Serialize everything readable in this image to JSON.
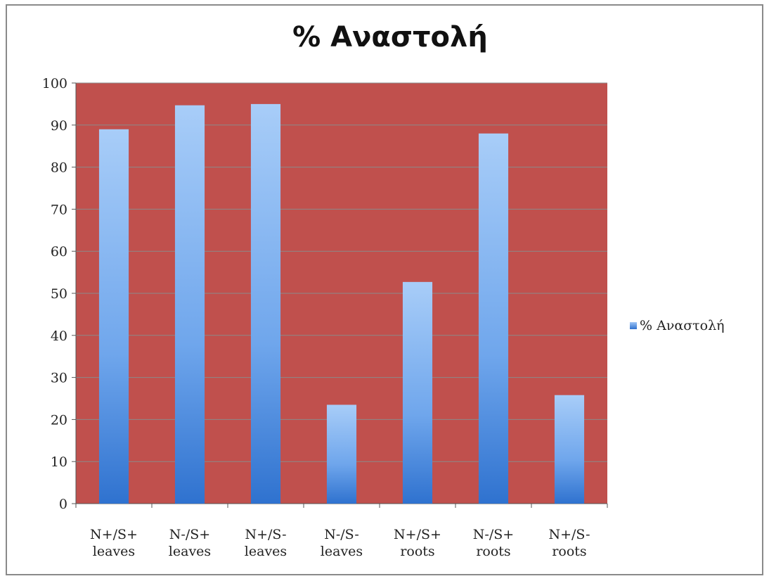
{
  "chart_data": {
    "type": "bar",
    "title": "% Αναστολή",
    "categories": [
      [
        "N+/S+",
        "leaves"
      ],
      [
        "N-/S+",
        "leaves"
      ],
      [
        "N+/S-",
        "leaves"
      ],
      [
        "N-/S-",
        "leaves"
      ],
      [
        "N+/S+",
        "roots"
      ],
      [
        "N-/S+",
        "roots"
      ],
      [
        "N+/S-",
        "roots"
      ]
    ],
    "series": [
      {
        "name": "% Αναστολή",
        "values": [
          89,
          94.7,
          95,
          23.5,
          52.7,
          88,
          25.8
        ]
      }
    ],
    "ylim": [
      0,
      100
    ],
    "yticks": [
      0,
      10,
      20,
      30,
      40,
      50,
      60,
      70,
      80,
      90,
      100
    ],
    "grid": true,
    "legend": "right",
    "colors": {
      "plot_background": "#c0504d",
      "bar_top": "#a8cdf8",
      "bar_bottom": "#2f72cf",
      "gridline": "#8a8a8a"
    }
  }
}
